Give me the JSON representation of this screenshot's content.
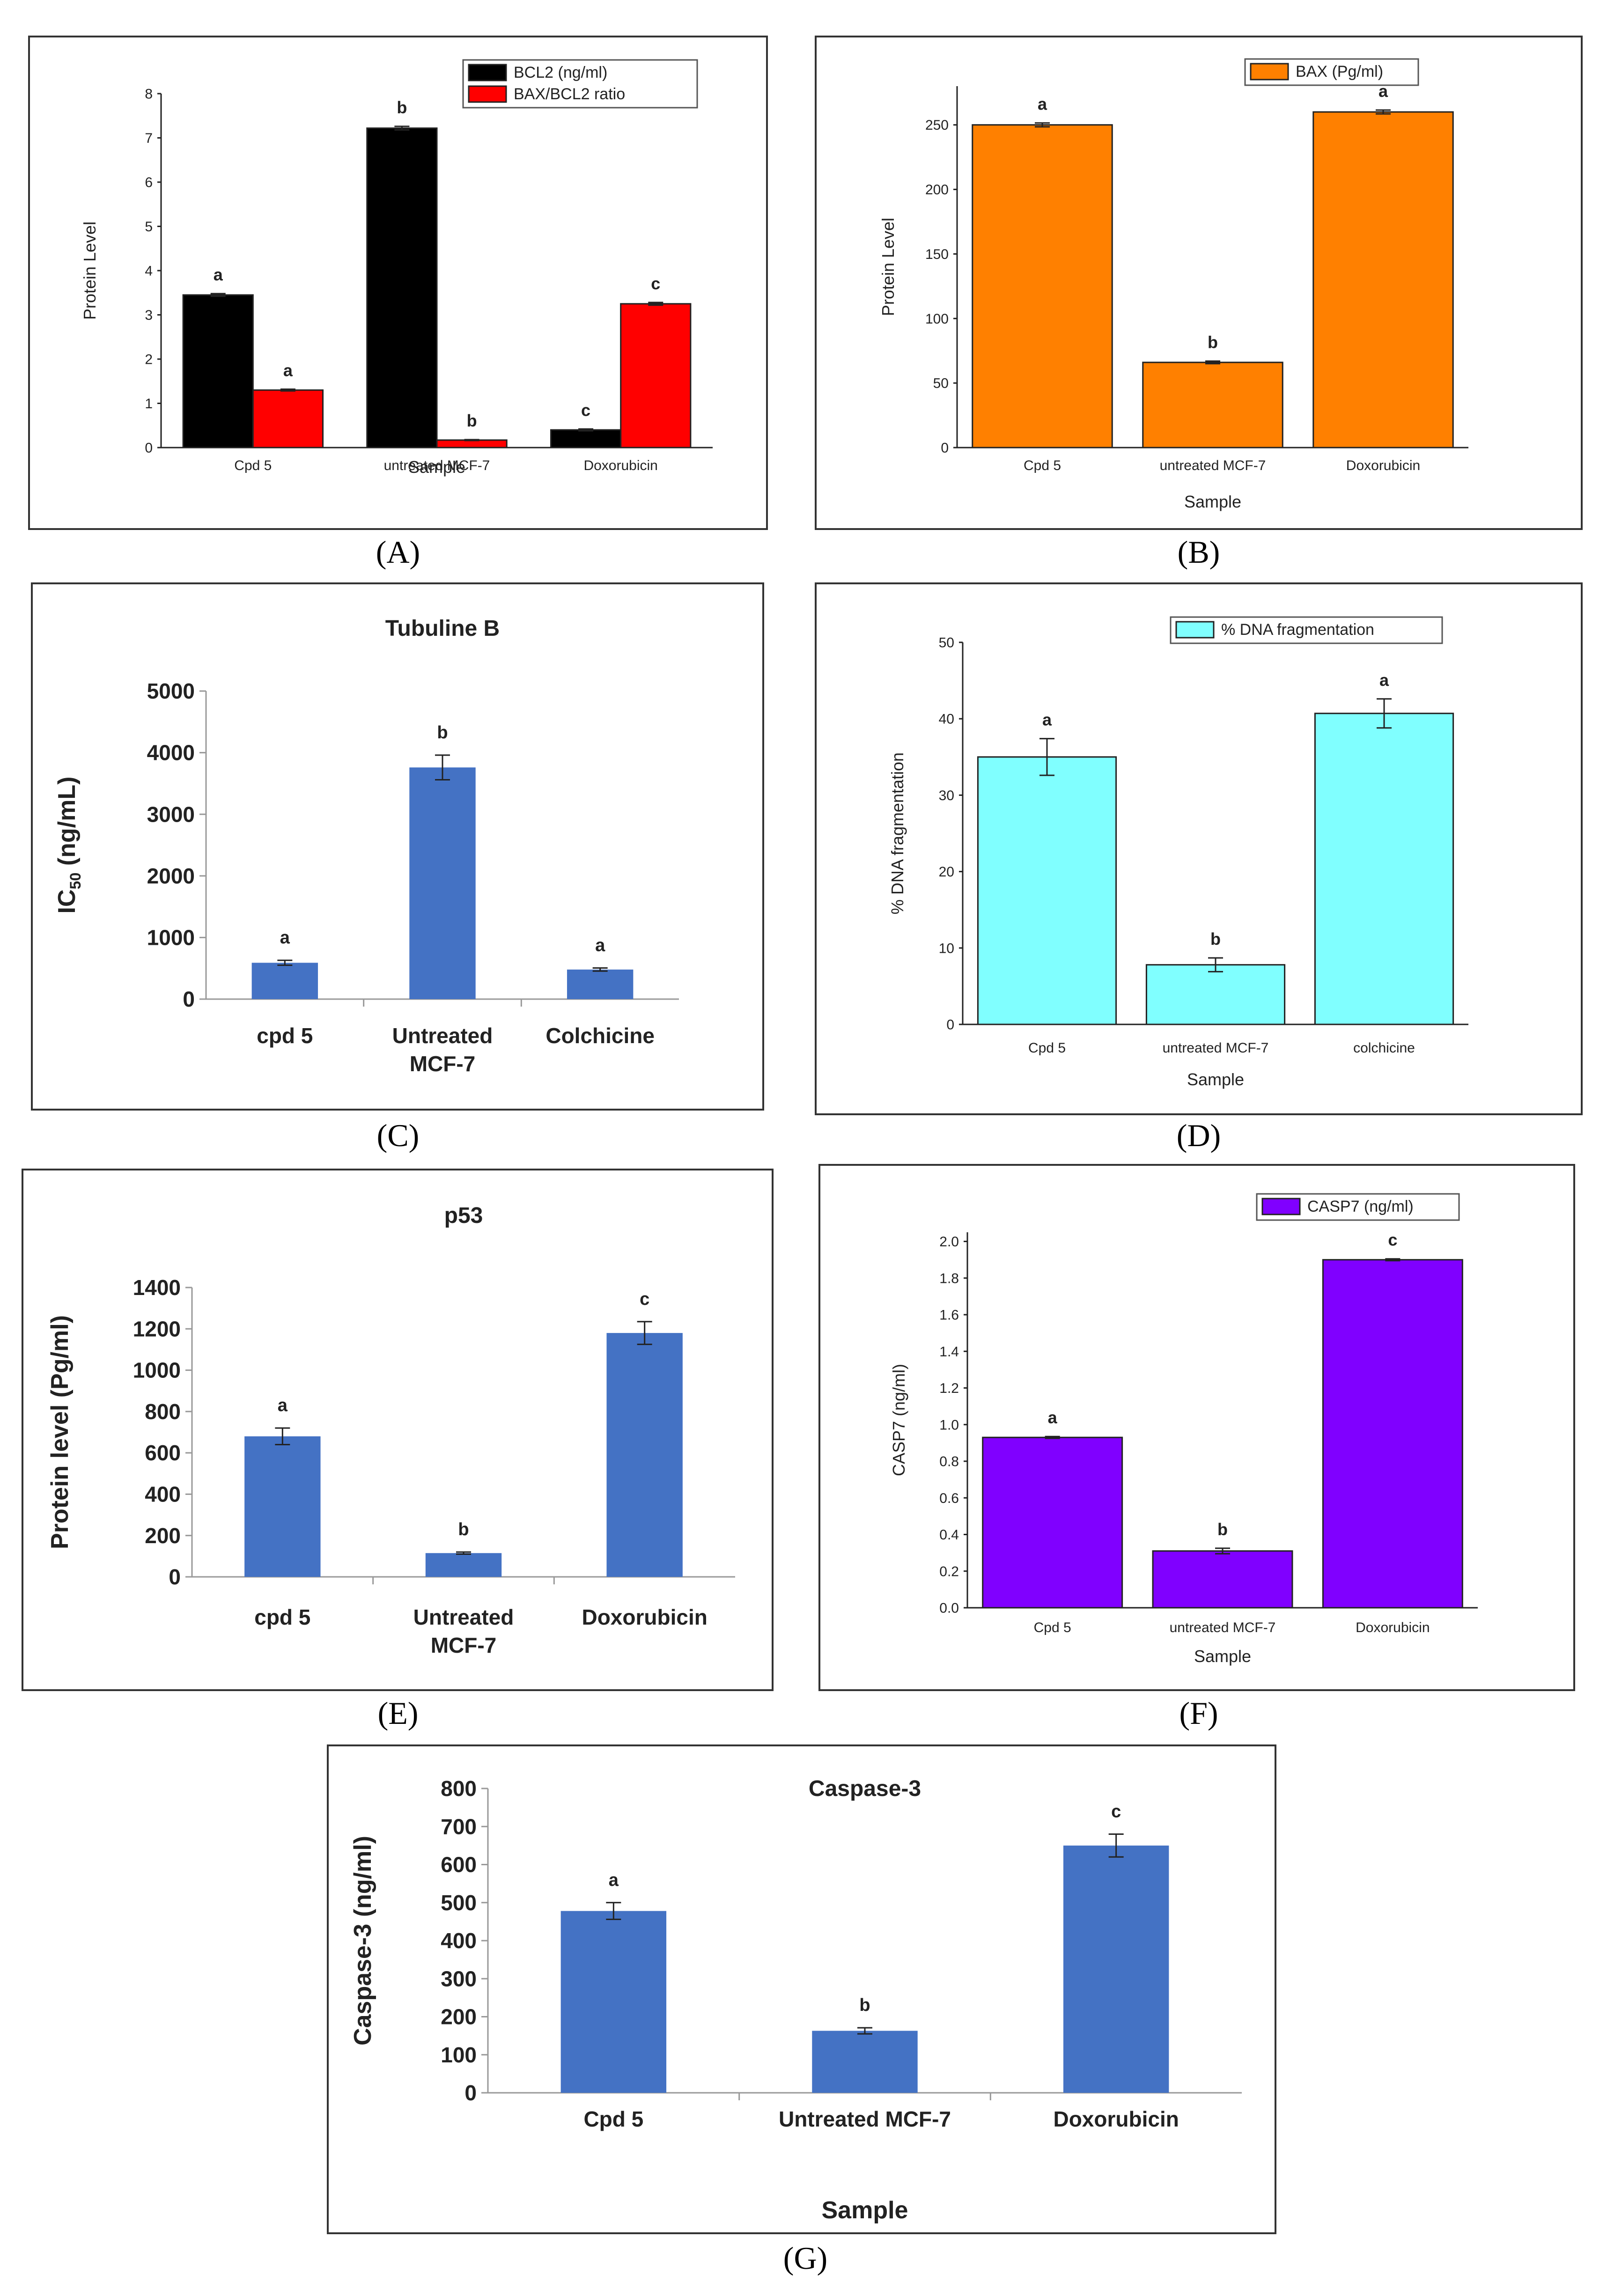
{
  "chart_data": [
    {
      "id": "A",
      "panel_label": "(A)",
      "type": "bar",
      "style": "origin",
      "title": "",
      "xlabel": "Sample",
      "ylabel": "Protein Level",
      "categories": [
        "Cpd 5",
        "untreated MCF-7",
        "Doxorubicin"
      ],
      "ylim": [
        0,
        8
      ],
      "yticks": [
        0,
        1,
        2,
        3,
        4,
        5,
        6,
        7,
        8
      ],
      "legend": "top-right",
      "series": [
        {
          "name": "BCL2 (ng/ml)",
          "color": "#000000",
          "values": [
            3.45,
            7.22,
            0.4
          ],
          "errors": [
            0.03,
            0.04,
            0.02
          ],
          "letters": [
            "a",
            "b",
            "c"
          ]
        },
        {
          "name": "BAX/BCL2 ratio",
          "color": "#ff0000",
          "values": [
            1.3,
            0.17,
            3.25
          ],
          "errors": [
            0.02,
            0.01,
            0.03
          ],
          "letters": [
            "a",
            "b",
            "c"
          ]
        }
      ]
    },
    {
      "id": "B",
      "panel_label": "(B)",
      "type": "bar",
      "style": "origin",
      "title": "",
      "xlabel": "Sample",
      "ylabel": "Protein Level",
      "categories": [
        "Cpd 5",
        "untreated MCF-7",
        "Doxorubicin"
      ],
      "ylim": [
        0,
        280
      ],
      "yticks": [
        0,
        50,
        100,
        150,
        200,
        250
      ],
      "legend": "top-right",
      "series": [
        {
          "name": "BAX (Pg/ml)",
          "color": "#ff8000",
          "values": [
            250,
            66,
            260
          ],
          "errors": [
            1.5,
            1,
            1.5
          ],
          "letters": [
            "a",
            "b",
            "a"
          ]
        }
      ]
    },
    {
      "id": "C",
      "panel_label": "(C)",
      "type": "bar",
      "style": "excel",
      "title": "Tubuline B",
      "xlabel": "",
      "ylabel": "IC50 (ng/mL)",
      "ylabel_main": "IC",
      "ylabel_sub": "50",
      "ylabel_rest": " (ng/mL)",
      "categories": [
        "cpd 5",
        "Untreated\nMCF-7",
        "Colchicine"
      ],
      "ylim": [
        0,
        5000
      ],
      "yticks": [
        0,
        1000,
        2000,
        3000,
        4000,
        5000
      ],
      "legend": "none",
      "series": [
        {
          "name": "IC50",
          "color": "#4472c4",
          "values": [
            590,
            3760,
            480
          ],
          "errors": [
            40,
            200,
            25
          ],
          "letters": [
            "a",
            "b",
            "a"
          ]
        }
      ]
    },
    {
      "id": "D",
      "panel_label": "(D)",
      "type": "bar",
      "style": "origin",
      "title": "",
      "xlabel": "Sample",
      "ylabel": "% DNA fragmentation",
      "categories": [
        "Cpd 5",
        "untreated MCF-7",
        "colchicine"
      ],
      "ylim": [
        0,
        50
      ],
      "yticks": [
        0,
        10,
        20,
        30,
        40,
        50
      ],
      "legend": "top-right",
      "series": [
        {
          "name": "% DNA fragmentation",
          "color": "#80ffff",
          "values": [
            35,
            7.8,
            40.7
          ],
          "errors": [
            2.4,
            0.9,
            1.9
          ],
          "letters": [
            "a",
            "b",
            "a"
          ]
        }
      ]
    },
    {
      "id": "E",
      "panel_label": "(E)",
      "type": "bar",
      "style": "excel",
      "title": "p53",
      "xlabel": "",
      "ylabel": "Protein level (Pg/ml)",
      "categories": [
        "cpd 5",
        "Untreated\nMCF-7",
        "Doxorubicin"
      ],
      "ylim": [
        0,
        1400
      ],
      "yticks": [
        0,
        200,
        400,
        600,
        800,
        1000,
        1200,
        1400
      ],
      "legend": "none",
      "series": [
        {
          "name": "p53",
          "color": "#4472c4",
          "values": [
            680,
            115,
            1180
          ],
          "errors": [
            40,
            5,
            55
          ],
          "letters": [
            "a",
            "b",
            "c"
          ]
        }
      ]
    },
    {
      "id": "F",
      "panel_label": "(F)",
      "type": "bar",
      "style": "origin",
      "title": "",
      "xlabel": "Sample",
      "ylabel": "CASP7 (ng/ml)",
      "categories": [
        "Cpd 5",
        "untreated MCF-7",
        "Doxorubicin"
      ],
      "ylim": [
        0,
        2.05
      ],
      "yticks": [
        0.0,
        0.2,
        0.4,
        0.6,
        0.8,
        1.0,
        1.2,
        1.4,
        1.6,
        1.8,
        2.0
      ],
      "ytick_decimals": 1,
      "legend": "top-right",
      "series": [
        {
          "name": "CASP7 (ng/ml)",
          "color": "#8000ff",
          "values": [
            0.93,
            0.31,
            1.9
          ],
          "errors": [
            0.005,
            0.015,
            0.005
          ],
          "letters": [
            "a",
            "b",
            "c"
          ]
        }
      ]
    },
    {
      "id": "G",
      "panel_label": "(G)",
      "type": "bar",
      "style": "excel",
      "title": "Caspase-3",
      "xlabel": "Sample",
      "ylabel": "Caspase-3 (ng/ml)",
      "categories": [
        "Cpd 5",
        "Untreated MCF-7",
        "Doxorubicin"
      ],
      "ylim": [
        0,
        800
      ],
      "yticks": [
        0,
        100,
        200,
        300,
        400,
        500,
        600,
        700,
        800
      ],
      "legend": "none",
      "series": [
        {
          "name": "Caspase-3",
          "color": "#4472c4",
          "values": [
            478,
            163,
            650
          ],
          "errors": [
            22,
            8,
            30
          ],
          "letters": [
            "a",
            "b",
            "c"
          ]
        }
      ]
    }
  ]
}
